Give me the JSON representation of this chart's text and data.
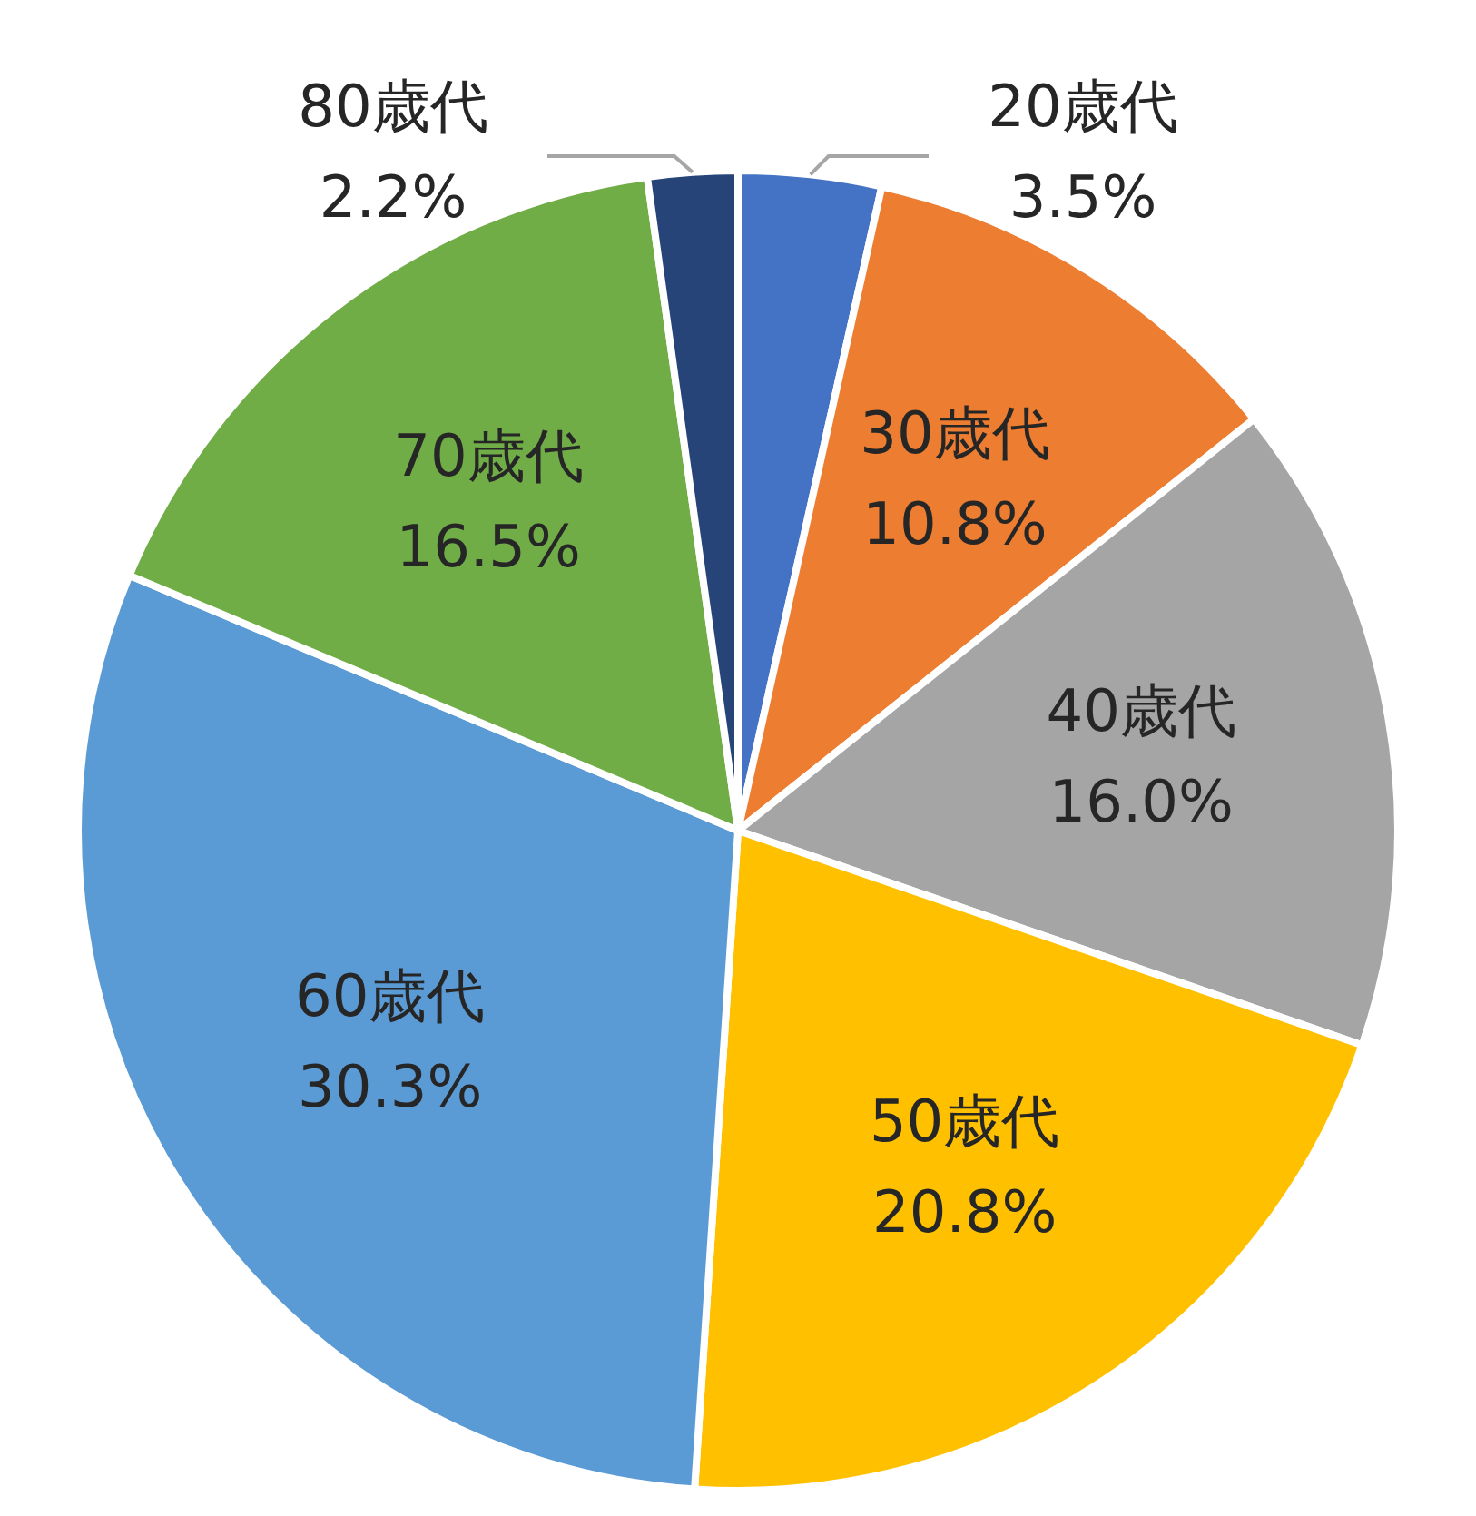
{
  "chart_data": {
    "type": "pie",
    "categories": [
      "20歳代",
      "30歳代",
      "40歳代",
      "50歳代",
      "60歳代",
      "70歳代",
      "80歳代"
    ],
    "values": [
      3.5,
      10.8,
      16.0,
      20.8,
      30.3,
      16.5,
      2.2
    ],
    "value_labels": [
      "3.5%",
      "10.8%",
      "16.0%",
      "20.8%",
      "30.3%",
      "16.5%",
      "2.2%"
    ],
    "colors": [
      "#4472c4",
      "#ed7d31",
      "#a5a5a5",
      "#ffc000",
      "#5b9bd5",
      "#70ad47",
      "#264478"
    ],
    "legend": false
  }
}
